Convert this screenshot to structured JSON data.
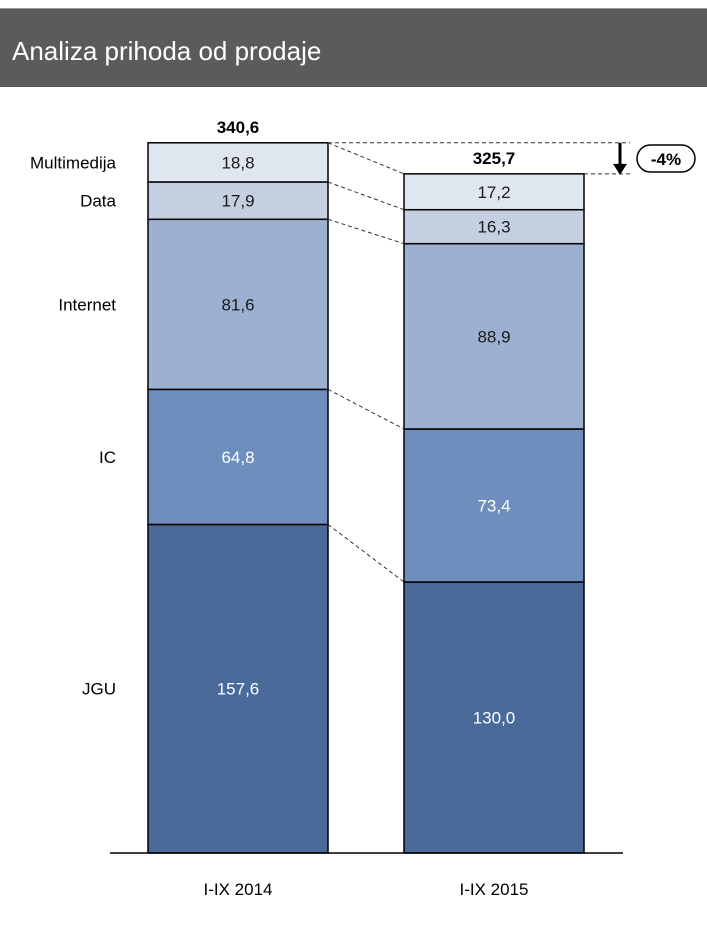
{
  "header": {
    "title": "Analiza prihoda od prodaje"
  },
  "chart_data": {
    "type": "bar",
    "stacked": true,
    "categories": [
      "I-IX 2014",
      "I-IX 2015"
    ],
    "totals": [
      "340,6",
      "325,7"
    ],
    "series": [
      {
        "name": "JGU",
        "values": [
          157.6,
          130.0
        ],
        "labels": [
          "157,6",
          "130,0"
        ],
        "color": "#4a6b9a",
        "text_color": "#ffffff"
      },
      {
        "name": "IC",
        "values": [
          64.8,
          73.4
        ],
        "labels": [
          "64,8",
          "73,4"
        ],
        "color": "#6e8fbd",
        "text_color": "#ffffff"
      },
      {
        "name": "Internet",
        "values": [
          81.6,
          88.9
        ],
        "labels": [
          "81,6",
          "88,9"
        ],
        "color": "#9cb1d1",
        "text_color": "#1a1a1a"
      },
      {
        "name": "Data",
        "values": [
          17.9,
          16.3
        ],
        "labels": [
          "17,9",
          "16,3"
        ],
        "color": "#c4cfe2",
        "text_color": "#1a1a1a"
      },
      {
        "name": "Multimedija",
        "values": [
          18.8,
          17.2
        ],
        "labels": [
          "18,8",
          "17,2"
        ],
        "color": "#e0e6f0",
        "text_color": "#1a1a1a"
      }
    ],
    "change_label": "-4%",
    "ylim": [
      0,
      340.6
    ],
    "legend": "left",
    "grid": false
  }
}
